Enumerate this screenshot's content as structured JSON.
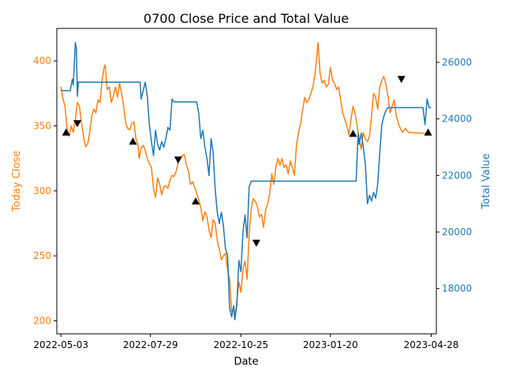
{
  "chart_data": {
    "type": "line",
    "title": "0700 Close Price and Total Value",
    "xlabel": "Date",
    "ylabel_left": "Today Close",
    "ylabel_right": "Total Value",
    "x_ticks": [
      "2022-05-03",
      "2022-07-29",
      "2022-10-25",
      "2023-01-20",
      "2023-04-28"
    ],
    "x_range": [
      "2022-04-29",
      "2023-05-03"
    ],
    "ylim_left": [
      190,
      425
    ],
    "yticks_left": [
      200,
      250,
      300,
      350,
      400
    ],
    "ylim_right": [
      16400,
      27200
    ],
    "yticks_right": [
      18000,
      20000,
      22000,
      24000,
      26000
    ],
    "colors": {
      "close": "#ff7f0e",
      "total": "#1f77b4",
      "marker": "#000000"
    },
    "legend": "none",
    "grid": false,
    "series": [
      {
        "name": "Today Close",
        "axis": "left",
        "color": "#ff7f0e",
        "points": [
          [
            "2022-05-03",
            380
          ],
          [
            "2022-05-05",
            371
          ],
          [
            "2022-05-07",
            365
          ],
          [
            "2022-05-09",
            348
          ],
          [
            "2022-05-11",
            342
          ],
          [
            "2022-05-13",
            350
          ],
          [
            "2022-05-15",
            345
          ],
          [
            "2022-05-17",
            355
          ],
          [
            "2022-05-19",
            368
          ],
          [
            "2022-05-21",
            365
          ],
          [
            "2022-05-23",
            352
          ],
          [
            "2022-05-25",
            342
          ],
          [
            "2022-05-27",
            334
          ],
          [
            "2022-05-29",
            336
          ],
          [
            "2022-05-31",
            345
          ],
          [
            "2022-06-02",
            358
          ],
          [
            "2022-06-04",
            363
          ],
          [
            "2022-06-06",
            360
          ],
          [
            "2022-06-08",
            370
          ],
          [
            "2022-06-10",
            368
          ],
          [
            "2022-06-12",
            385
          ],
          [
            "2022-06-14",
            395
          ],
          [
            "2022-06-15",
            397
          ],
          [
            "2022-06-17",
            378
          ],
          [
            "2022-06-19",
            380
          ],
          [
            "2022-06-21",
            368
          ],
          [
            "2022-06-23",
            373
          ],
          [
            "2022-06-25",
            380
          ],
          [
            "2022-06-27",
            372
          ],
          [
            "2022-06-29",
            383
          ],
          [
            "2022-07-01",
            375
          ],
          [
            "2022-07-03",
            365
          ],
          [
            "2022-07-05",
            352
          ],
          [
            "2022-07-07",
            348
          ],
          [
            "2022-07-09",
            347
          ],
          [
            "2022-07-11",
            352
          ],
          [
            "2022-07-13",
            353
          ],
          [
            "2022-07-15",
            340
          ],
          [
            "2022-07-17",
            335
          ],
          [
            "2022-07-18",
            325
          ],
          [
            "2022-07-20",
            333
          ],
          [
            "2022-07-22",
            335
          ],
          [
            "2022-07-24",
            331
          ],
          [
            "2022-07-26",
            325
          ],
          [
            "2022-07-28",
            321
          ],
          [
            "2022-07-30",
            318
          ],
          [
            "2022-08-01",
            302
          ],
          [
            "2022-08-03",
            295
          ],
          [
            "2022-08-05",
            310
          ],
          [
            "2022-08-07",
            305
          ],
          [
            "2022-08-09",
            297
          ],
          [
            "2022-08-11",
            303
          ],
          [
            "2022-08-13",
            304
          ],
          [
            "2022-08-15",
            302
          ],
          [
            "2022-08-17",
            308
          ],
          [
            "2022-08-19",
            312
          ],
          [
            "2022-08-21",
            311
          ],
          [
            "2022-08-23",
            315
          ],
          [
            "2022-08-25",
            322
          ],
          [
            "2022-08-27",
            326
          ],
          [
            "2022-08-29",
            327
          ],
          [
            "2022-08-31",
            328
          ],
          [
            "2022-09-02",
            320
          ],
          [
            "2022-09-04",
            315
          ],
          [
            "2022-09-06",
            305
          ],
          [
            "2022-09-08",
            307
          ],
          [
            "2022-09-10",
            303
          ],
          [
            "2022-09-12",
            298
          ],
          [
            "2022-09-14",
            293
          ],
          [
            "2022-09-16",
            287
          ],
          [
            "2022-09-18",
            277
          ],
          [
            "2022-09-20",
            284
          ],
          [
            "2022-09-22",
            280
          ],
          [
            "2022-09-24",
            270
          ],
          [
            "2022-09-26",
            264
          ],
          [
            "2022-09-28",
            278
          ],
          [
            "2022-09-30",
            275
          ],
          [
            "2022-10-02",
            262
          ],
          [
            "2022-10-04",
            255
          ],
          [
            "2022-10-06",
            247
          ],
          [
            "2022-10-08",
            250
          ],
          [
            "2022-10-10",
            252
          ],
          [
            "2022-10-12",
            240
          ],
          [
            "2022-10-14",
            232
          ],
          [
            "2022-10-16",
            207
          ],
          [
            "2022-10-18",
            210
          ],
          [
            "2022-10-19",
            201
          ],
          [
            "2022-10-21",
            215
          ],
          [
            "2022-10-23",
            230
          ],
          [
            "2022-10-25",
            222
          ],
          [
            "2022-10-27",
            240
          ],
          [
            "2022-10-29",
            246
          ],
          [
            "2022-10-31",
            232
          ],
          [
            "2022-11-02",
            267
          ],
          [
            "2022-11-04",
            286
          ],
          [
            "2022-11-06",
            294
          ],
          [
            "2022-11-08",
            292
          ],
          [
            "2022-11-10",
            288
          ],
          [
            "2022-11-12",
            280
          ],
          [
            "2022-11-14",
            282
          ],
          [
            "2022-11-16",
            272
          ],
          [
            "2022-11-18",
            285
          ],
          [
            "2022-11-20",
            290
          ],
          [
            "2022-11-22",
            298
          ],
          [
            "2022-11-24",
            313
          ],
          [
            "2022-11-26",
            305
          ],
          [
            "2022-11-28",
            318
          ],
          [
            "2022-11-30",
            325
          ],
          [
            "2022-12-02",
            320
          ],
          [
            "2022-12-04",
            325
          ],
          [
            "2022-12-06",
            318
          ],
          [
            "2022-12-08",
            320
          ],
          [
            "2022-12-10",
            313
          ],
          [
            "2022-12-12",
            323
          ],
          [
            "2022-12-14",
            318
          ],
          [
            "2022-12-16",
            312
          ],
          [
            "2022-12-18",
            335
          ],
          [
            "2022-12-20",
            345
          ],
          [
            "2022-12-22",
            352
          ],
          [
            "2022-12-24",
            362
          ],
          [
            "2022-12-26",
            372
          ],
          [
            "2022-12-28",
            368
          ],
          [
            "2022-12-30",
            370
          ],
          [
            "2023-01-01",
            375
          ],
          [
            "2023-01-03",
            380
          ],
          [
            "2023-01-05",
            390
          ],
          [
            "2023-01-07",
            405
          ],
          [
            "2023-01-08",
            414
          ],
          [
            "2023-01-10",
            390
          ],
          [
            "2023-01-12",
            383
          ],
          [
            "2023-01-14",
            385
          ],
          [
            "2023-01-16",
            380
          ],
          [
            "2023-01-18",
            382
          ],
          [
            "2023-01-20",
            395
          ],
          [
            "2023-01-22",
            385
          ],
          [
            "2023-01-24",
            383
          ],
          [
            "2023-01-26",
            378
          ],
          [
            "2023-01-28",
            380
          ],
          [
            "2023-01-30",
            370
          ],
          [
            "2023-02-01",
            360
          ],
          [
            "2023-02-03",
            355
          ],
          [
            "2023-02-05",
            350
          ],
          [
            "2023-02-07",
            343
          ],
          [
            "2023-02-09",
            355
          ],
          [
            "2023-02-11",
            365
          ],
          [
            "2023-02-13",
            360
          ],
          [
            "2023-02-15",
            350
          ],
          [
            "2023-02-17",
            340
          ],
          [
            "2023-02-19",
            332
          ],
          [
            "2023-02-21",
            345
          ],
          [
            "2023-02-23",
            340
          ],
          [
            "2023-02-25",
            338
          ],
          [
            "2023-02-27",
            342
          ],
          [
            "2023-03-01",
            358
          ],
          [
            "2023-03-03",
            375
          ],
          [
            "2023-03-05",
            372
          ],
          [
            "2023-03-07",
            363
          ],
          [
            "2023-03-09",
            380
          ],
          [
            "2023-03-11",
            385
          ],
          [
            "2023-03-13",
            388
          ],
          [
            "2023-03-15",
            382
          ],
          [
            "2023-03-17",
            373
          ],
          [
            "2023-03-19",
            360
          ],
          [
            "2023-03-21",
            365
          ],
          [
            "2023-03-23",
            370
          ],
          [
            "2023-03-25",
            358
          ],
          [
            "2023-03-27",
            352
          ],
          [
            "2023-03-29",
            348
          ],
          [
            "2023-03-31",
            345
          ],
          [
            "2023-04-03",
            348
          ],
          [
            "2023-04-06",
            345
          ],
          [
            "2023-04-28",
            344
          ]
        ]
      },
      {
        "name": "Total Value",
        "axis": "right",
        "color": "#1f77b4",
        "points": [
          [
            "2022-05-03",
            25000
          ],
          [
            "2022-05-12",
            25000
          ],
          [
            "2022-05-14",
            25400
          ],
          [
            "2022-05-15",
            25200
          ],
          [
            "2022-05-17",
            26700
          ],
          [
            "2022-05-18",
            26500
          ],
          [
            "2022-05-19",
            24800
          ],
          [
            "2022-05-20",
            25300
          ],
          [
            "2022-05-23",
            25300
          ],
          [
            "2022-07-19",
            25300
          ],
          [
            "2022-07-20",
            24700
          ],
          [
            "2022-07-22",
            25000
          ],
          [
            "2022-07-24",
            25300
          ],
          [
            "2022-07-26",
            24800
          ],
          [
            "2022-07-28",
            23800
          ],
          [
            "2022-07-30",
            23200
          ],
          [
            "2022-08-01",
            22700
          ],
          [
            "2022-08-03",
            23600
          ],
          [
            "2022-08-05",
            23100
          ],
          [
            "2022-08-07",
            22900
          ],
          [
            "2022-08-09",
            23200
          ],
          [
            "2022-08-11",
            23000
          ],
          [
            "2022-08-13",
            23300
          ],
          [
            "2022-08-15",
            23700
          ],
          [
            "2022-08-17",
            23600
          ],
          [
            "2022-08-19",
            24700
          ],
          [
            "2022-08-21",
            24600
          ],
          [
            "2022-08-23",
            24600
          ],
          [
            "2022-09-12",
            24600
          ],
          [
            "2022-09-14",
            24200
          ],
          [
            "2022-09-16",
            23300
          ],
          [
            "2022-09-18",
            23600
          ],
          [
            "2022-09-20",
            23000
          ],
          [
            "2022-09-22",
            22600
          ],
          [
            "2022-09-24",
            22000
          ],
          [
            "2022-09-26",
            23300
          ],
          [
            "2022-09-28",
            22800
          ],
          [
            "2022-09-30",
            21500
          ],
          [
            "2022-10-02",
            20700
          ],
          [
            "2022-10-04",
            20300
          ],
          [
            "2022-10-06",
            20700
          ],
          [
            "2022-10-08",
            20200
          ],
          [
            "2022-10-10",
            19400
          ],
          [
            "2022-10-12",
            19200
          ],
          [
            "2022-10-14",
            17300
          ],
          [
            "2022-10-16",
            17000
          ],
          [
            "2022-10-18",
            17400
          ],
          [
            "2022-10-19",
            16900
          ],
          [
            "2022-10-21",
            17400
          ],
          [
            "2022-10-23",
            19000
          ],
          [
            "2022-10-25",
            18600
          ],
          [
            "2022-10-27",
            20000
          ],
          [
            "2022-10-29",
            20600
          ],
          [
            "2022-10-31",
            19800
          ],
          [
            "2022-11-02",
            21600
          ],
          [
            "2022-11-04",
            21800
          ],
          [
            "2023-02-14",
            21800
          ],
          [
            "2023-02-16",
            23500
          ],
          [
            "2023-02-17",
            23100
          ],
          [
            "2023-02-19",
            23500
          ],
          [
            "2023-02-21",
            23000
          ],
          [
            "2023-02-23",
            22400
          ],
          [
            "2023-02-25",
            21000
          ],
          [
            "2023-02-27",
            21300
          ],
          [
            "2023-03-01",
            21100
          ],
          [
            "2023-03-03",
            21400
          ],
          [
            "2023-03-05",
            21200
          ],
          [
            "2023-03-07",
            21700
          ],
          [
            "2023-03-09",
            22800
          ],
          [
            "2023-03-11",
            23800
          ],
          [
            "2023-03-13",
            24100
          ],
          [
            "2023-03-15",
            24300
          ],
          [
            "2023-03-17",
            24400
          ],
          [
            "2023-04-20",
            24400
          ],
          [
            "2023-04-22",
            23800
          ],
          [
            "2023-04-24",
            24700
          ],
          [
            "2023-04-26",
            24400
          ],
          [
            "2023-04-28",
            24400
          ]
        ]
      }
    ],
    "signals": [
      {
        "date": "2022-05-08",
        "value": 345,
        "marker": "buy"
      },
      {
        "date": "2022-05-19",
        "value": 352,
        "marker": "sell"
      },
      {
        "date": "2022-07-12",
        "value": 338,
        "marker": "buy"
      },
      {
        "date": "2022-08-25",
        "value": 324,
        "marker": "sell"
      },
      {
        "date": "2022-09-11",
        "value": 292,
        "marker": "buy"
      },
      {
        "date": "2022-11-09",
        "value": 260,
        "marker": "sell"
      },
      {
        "date": "2023-02-11",
        "value": 344,
        "marker": "buy"
      },
      {
        "date": "2023-03-30",
        "value": 386,
        "marker": "sell"
      },
      {
        "date": "2023-04-25",
        "value": 345,
        "marker": "buy"
      }
    ]
  }
}
